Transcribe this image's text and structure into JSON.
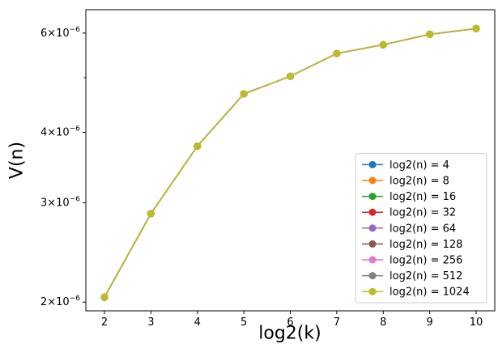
{
  "chart_data": {
    "type": "line",
    "xlabel": "log2(k)",
    "ylabel": "V(n)",
    "x": [
      2,
      3,
      4,
      5,
      6,
      7,
      8,
      9,
      10
    ],
    "xlim": [
      1.6,
      10.4
    ],
    "ylim": [
      1.93e-06,
      6.6e-06
    ],
    "y_scale": "log",
    "grid": false,
    "legend_position": "lower-right",
    "x_ticks": [
      {
        "value": 2,
        "label": "2"
      },
      {
        "value": 3,
        "label": "3"
      },
      {
        "value": 4,
        "label": "4"
      },
      {
        "value": 5,
        "label": "5"
      },
      {
        "value": 6,
        "label": "6"
      },
      {
        "value": 7,
        "label": "7"
      },
      {
        "value": 8,
        "label": "8"
      },
      {
        "value": 9,
        "label": "9"
      },
      {
        "value": 10,
        "label": "10"
      }
    ],
    "y_ticks": [
      {
        "value": 2e-06,
        "base": "2",
        "exp": "−6"
      },
      {
        "value": 3e-06,
        "base": "3",
        "exp": "−6"
      },
      {
        "value": 4e-06,
        "base": "4",
        "exp": "−6"
      },
      {
        "value": 6e-06,
        "base": "6",
        "exp": "−6"
      }
    ],
    "y_minor_ticks": [
      5e-06
    ],
    "series": [
      {
        "name": "log2(n) = 4",
        "color": "#1f77b4",
        "values": [
          2.04e-06,
          2.87e-06,
          3.78e-06,
          4.68e-06,
          5.03e-06,
          5.52e-06,
          5.72e-06,
          5.97e-06,
          6.11e-06
        ]
      },
      {
        "name": "log2(n) = 8",
        "color": "#ff7f0e",
        "values": [
          2.04e-06,
          2.87e-06,
          3.78e-06,
          4.68e-06,
          5.03e-06,
          5.52e-06,
          5.72e-06,
          5.97e-06,
          6.11e-06
        ]
      },
      {
        "name": "log2(n) = 16",
        "color": "#2ca02c",
        "values": [
          2.04e-06,
          2.87e-06,
          3.78e-06,
          4.68e-06,
          5.03e-06,
          5.52e-06,
          5.72e-06,
          5.97e-06,
          6.11e-06
        ]
      },
      {
        "name": "log2(n) = 32",
        "color": "#d62728",
        "values": [
          2.04e-06,
          2.87e-06,
          3.78e-06,
          4.68e-06,
          5.03e-06,
          5.52e-06,
          5.72e-06,
          5.97e-06,
          6.11e-06
        ]
      },
      {
        "name": "log2(n) = 64",
        "color": "#9467bd",
        "values": [
          2.04e-06,
          2.87e-06,
          3.78e-06,
          4.68e-06,
          5.03e-06,
          5.52e-06,
          5.72e-06,
          5.97e-06,
          6.11e-06
        ]
      },
      {
        "name": "log2(n) = 128",
        "color": "#8c564b",
        "values": [
          2.04e-06,
          2.87e-06,
          3.78e-06,
          4.68e-06,
          5.03e-06,
          5.52e-06,
          5.72e-06,
          5.97e-06,
          6.11e-06
        ]
      },
      {
        "name": "log2(n) = 256",
        "color": "#e377c2",
        "values": [
          2.04e-06,
          2.87e-06,
          3.78e-06,
          4.68e-06,
          5.03e-06,
          5.52e-06,
          5.72e-06,
          5.97e-06,
          6.11e-06
        ]
      },
      {
        "name": "log2(n) = 512",
        "color": "#7f7f7f",
        "values": [
          2.04e-06,
          2.87e-06,
          3.78e-06,
          4.68e-06,
          5.03e-06,
          5.52e-06,
          5.72e-06,
          5.97e-06,
          6.11e-06
        ]
      },
      {
        "name": "log2(n) = 1024",
        "color": "#bcbd22",
        "values": [
          2.04e-06,
          2.87e-06,
          3.78e-06,
          4.68e-06,
          5.03e-06,
          5.52e-06,
          5.72e-06,
          5.97e-06,
          6.11e-06
        ]
      }
    ]
  }
}
